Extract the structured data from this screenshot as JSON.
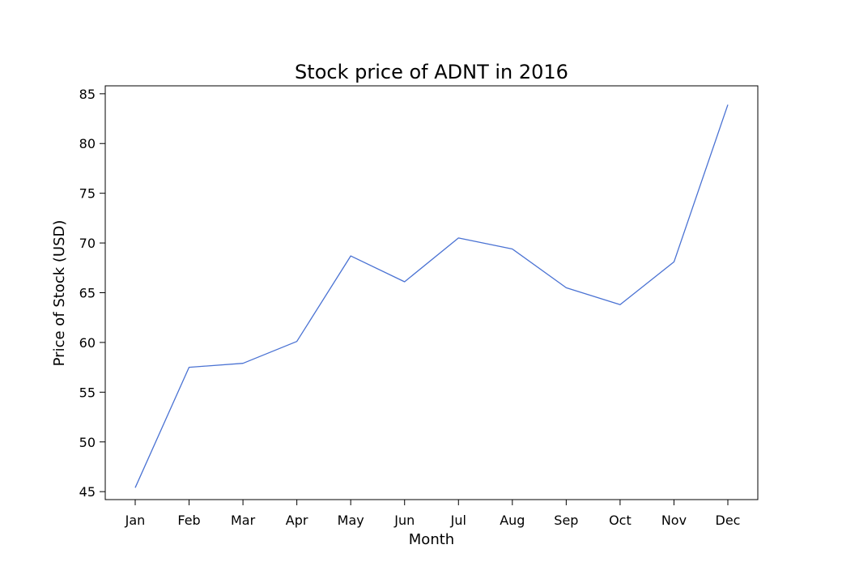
{
  "chart_data": {
    "type": "line",
    "title": "Stock price of ADNT in 2016",
    "xlabel": "Month",
    "ylabel": "Price of Stock (USD)",
    "categories": [
      "Jan",
      "Feb",
      "Mar",
      "Apr",
      "May",
      "Jun",
      "Jul",
      "Aug",
      "Sep",
      "Oct",
      "Nov",
      "Dec"
    ],
    "series": [
      {
        "values": [
          45.4,
          57.5,
          57.9,
          60.1,
          68.7,
          66.1,
          70.5,
          69.4,
          65.5,
          63.8,
          68.1,
          83.9
        ],
        "color": "#4a72d3"
      }
    ],
    "ylim": [
      44.2,
      85.8
    ],
    "yticks": [
      45,
      50,
      55,
      60,
      65,
      70,
      75,
      80,
      85
    ],
    "grid": false
  }
}
